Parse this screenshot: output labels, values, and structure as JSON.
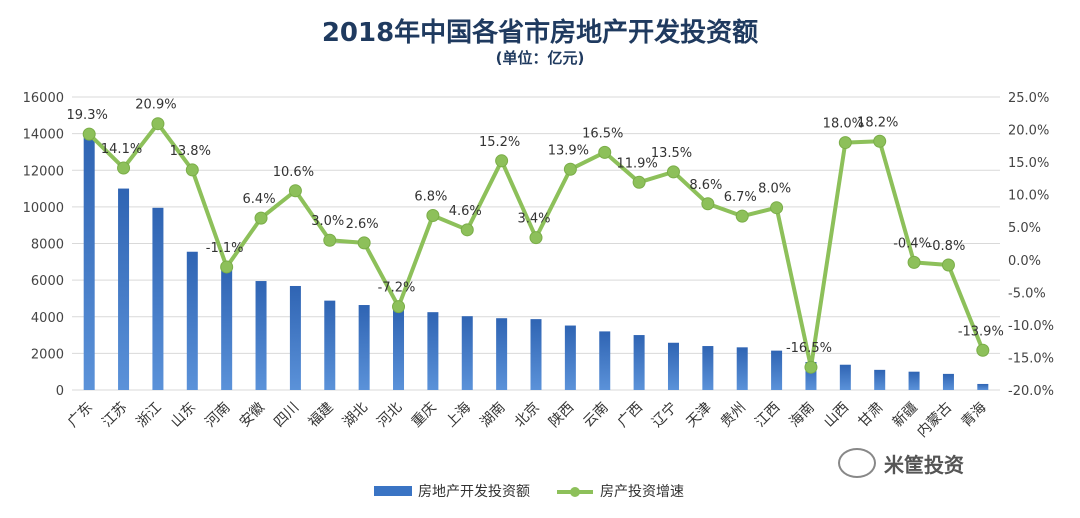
{
  "chart_data": {
    "type": "bar+line",
    "title": "2018年中国各省市房地产开发投资额",
    "subtitle": "(单位：亿元)",
    "categories": [
      "广东",
      "江苏",
      "浙江",
      "山东",
      "河南",
      "安徽",
      "四川",
      "福建",
      "湖北",
      "河北",
      "重庆",
      "上海",
      "湖南",
      "北京",
      "陕西",
      "云南",
      "广西",
      "辽宁",
      "天津",
      "贵州",
      "江西",
      "海南",
      "山西",
      "甘肃",
      "新疆",
      "内蒙古",
      "青海"
    ],
    "series": [
      {
        "name": "房地产开发投资额",
        "type": "bar",
        "axis": "left",
        "color": "#3a74c4",
        "values": [
          13900,
          11000,
          9950,
          7550,
          6780,
          5950,
          5680,
          4880,
          4640,
          4400,
          4250,
          4030,
          3920,
          3870,
          3520,
          3200,
          3000,
          2580,
          2400,
          2330,
          2150,
          1530,
          1380,
          1100,
          1000,
          880,
          330
        ]
      },
      {
        "name": "房产投资增速",
        "type": "line",
        "axis": "right",
        "color": "#8dc05a",
        "values": [
          19.3,
          14.1,
          20.9,
          13.8,
          -1.1,
          6.4,
          10.6,
          3.0,
          2.6,
          -7.2,
          6.8,
          4.6,
          15.2,
          3.4,
          13.9,
          16.5,
          11.9,
          13.5,
          8.6,
          6.7,
          8.0,
          -16.5,
          18.0,
          18.2,
          -0.4,
          -0.8,
          -13.9
        ],
        "labels": [
          "19.3%",
          "14.1%",
          "20.9%",
          "13.8%",
          "-1.1%",
          "6.4%",
          "10.6%",
          "3.0%",
          "2.6%",
          "-7.2%",
          "6.8%",
          "4.6%",
          "15.2%",
          "3.4%",
          "13.9%",
          "16.5%",
          "11.9%",
          "13.5%",
          "8.6%",
          "6.7%",
          "8.0%",
          "-16.5%",
          "18.0%",
          "18.2%",
          "-0.4%",
          "-0.8%",
          "-13.9%"
        ]
      }
    ],
    "y_left": {
      "min": 0,
      "max": 16000,
      "step": 2000,
      "ticks": [
        "0",
        "2000",
        "4000",
        "6000",
        "8000",
        "10000",
        "12000",
        "14000",
        "16000"
      ]
    },
    "y_right": {
      "min": -20,
      "max": 25,
      "step": 5,
      "ticks": [
        "-20.0%",
        "-15.0%",
        "-10.0%",
        "-5.0%",
        "0.0%",
        "5.0%",
        "10.0%",
        "15.0%",
        "20.0%",
        "25.0%"
      ]
    },
    "grid": true,
    "legend_position": "bottom"
  },
  "watermark": {
    "text": "米筐投资"
  }
}
